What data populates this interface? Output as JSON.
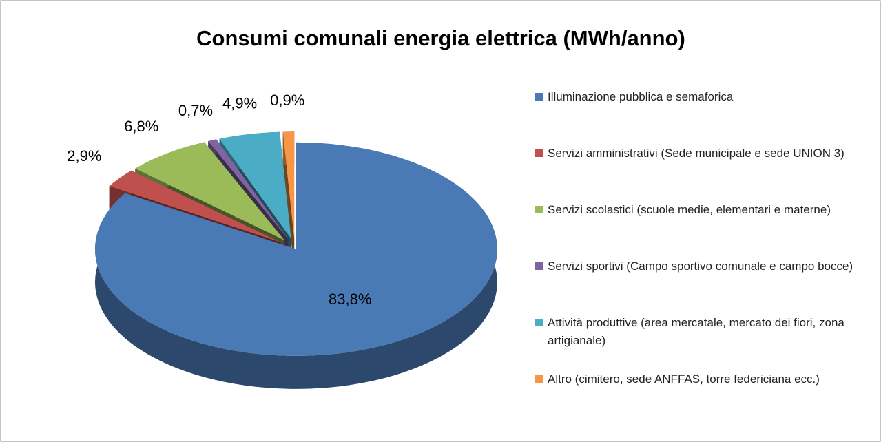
{
  "chart_data": {
    "type": "pie",
    "title": "Consumi comunali energia elettrica (MWh/anno)",
    "categories": [
      "Illuminazione pubblica e semaforica",
      "Servizi amministrativi (Sede municipale e sede UNION 3)",
      "Servizi scolastici (scuole medie, elementari e materne)",
      "Servizi sportivi (Campo sportivo comunale e campo bocce)",
      "Attività produttive (area mercatale, mercato dei fiori, zona artigianale)",
      "Altro (cimitero, sede ANFFAS, torre federiciana ecc.)"
    ],
    "values": [
      83.8,
      2.9,
      6.8,
      0.7,
      4.9,
      0.9
    ],
    "value_labels": [
      "83,8%",
      "2,9%",
      "6,8%",
      "0,7%",
      "4,9%",
      "0,9%"
    ],
    "colors": [
      "#4a7ab6",
      "#c0504d",
      "#9bbb59",
      "#8064a2",
      "#4bacc6",
      "#f79646"
    ],
    "legend": "right"
  }
}
